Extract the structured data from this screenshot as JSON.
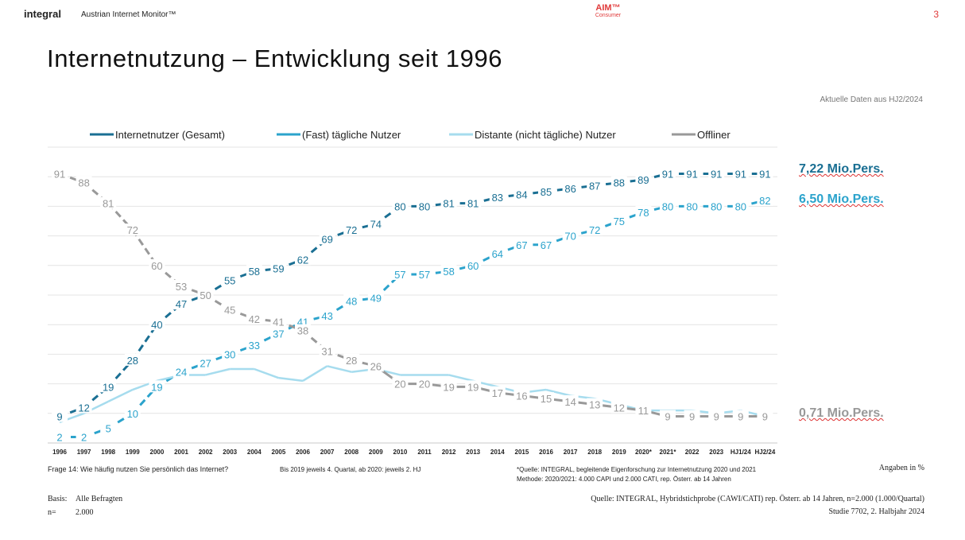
{
  "header": {
    "brand": "integral",
    "brand_sub": "Austrian Internet Monitor™",
    "aim_main": "AIM™",
    "aim_sub": "Consumer",
    "page_number": "3"
  },
  "title": "Internetnutzung – Entwicklung seit 1996",
  "subnote": "Aktuelle Daten aus HJ2/2024",
  "right_labels": {
    "total": "7,22 Mio.Pers.",
    "daily": "6,50 Mio.Pers.",
    "offliner": "0,71 Mio.Pers."
  },
  "footer": {
    "question": "Frage 14: Wie häufig nutzen Sie persönlich das Internet?",
    "period": "Bis 2019 jeweils 4. Quartal, ab 2020: jeweils 2. HJ",
    "source_note_1": "*Quelle: INTEGRAL, begleitende Eigenforschung zur Internetnutzung 2020 und 2021",
    "source_note_2": "Methode: 2020/2021: 4.000 CAPI und 2.000 CATI, rep. Österr. ab 14 Jahren",
    "unit": "Angaben in %",
    "basis_label": "Basis:",
    "basis_value": "Alle Befragten",
    "n_label": "n=",
    "n_value": "2.000",
    "source": "Quelle: INTEGRAL, Hybridstichprobe (CAWI/CATI)  rep. Österr. ab 14 Jahren, n=2.000 (1.000/Quartal)",
    "study": "Studie 7702, 2. Halbjahr 2024"
  },
  "chart_data": {
    "type": "line",
    "x": [
      "1996",
      "1997",
      "1998",
      "1999",
      "2000",
      "2001",
      "2002",
      "2003",
      "2004",
      "2005",
      "2006",
      "2007",
      "2008",
      "2009",
      "2010",
      "2011",
      "2012",
      "2013",
      "2014",
      "2015",
      "2016",
      "2017",
      "2018",
      "2019",
      "2020*",
      "2021*",
      "2022",
      "2023",
      "HJ1/24",
      "HJ2/24"
    ],
    "ylim": [
      0,
      100
    ],
    "grid": true,
    "legend_position": "top",
    "series": [
      {
        "name": "Internetnutzer (Gesamt)",
        "color": "#1a6f93",
        "style": "dashed",
        "labels": true,
        "values": [
          9,
          12,
          19,
          28,
          40,
          47,
          50,
          55,
          58,
          59,
          62,
          69,
          72,
          74,
          80,
          80,
          81,
          81,
          83,
          84,
          85,
          86,
          87,
          88,
          89,
          91,
          91,
          91,
          91,
          91
        ]
      },
      {
        "name": "(Fast) tägliche Nutzer",
        "color": "#2ba3cc",
        "style": "dashed",
        "labels": true,
        "values": [
          2,
          2,
          5,
          10,
          19,
          24,
          27,
          30,
          33,
          37,
          41,
          43,
          48,
          49,
          57,
          57,
          58,
          60,
          64,
          67,
          67,
          70,
          72,
          75,
          78,
          80,
          80,
          80,
          80,
          82
        ]
      },
      {
        "name": "Distante (nicht tägliche) Nutzer",
        "color": "#a6dcee",
        "style": "solid",
        "labels": false,
        "values": [
          7,
          10,
          14,
          18,
          21,
          23,
          23,
          25,
          25,
          22,
          21,
          26,
          24,
          25,
          23,
          23,
          23,
          21,
          19,
          17,
          18,
          16,
          15,
          13,
          11,
          11,
          11,
          10,
          11,
          9
        ]
      },
      {
        "name": "Offliner",
        "color": "#999999",
        "style": "mixed",
        "labels": true,
        "values": [
          91,
          88,
          81,
          72,
          60,
          53,
          50,
          45,
          42,
          41,
          38,
          31,
          28,
          26,
          20,
          20,
          19,
          19,
          17,
          16,
          15,
          14,
          13,
          12,
          11,
          9,
          9,
          9,
          9,
          9
        ]
      }
    ]
  }
}
